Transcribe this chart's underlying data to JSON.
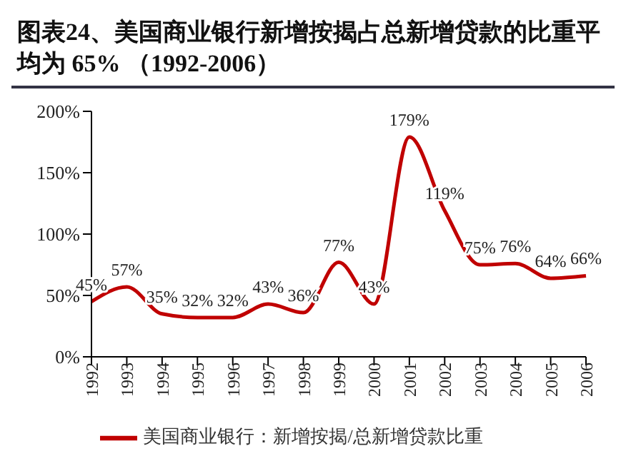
{
  "chart_data": {
    "type": "line",
    "title": "图表24、美国商业银行新增按揭占总新增贷款的比重平均为 65% （1992-2006）",
    "categories": [
      "1992",
      "1993",
      "1994",
      "1995",
      "1996",
      "1997",
      "1998",
      "1999",
      "2000",
      "2001",
      "2002",
      "2003",
      "2004",
      "2005",
      "2006"
    ],
    "series": [
      {
        "name": "美国商业银行：新增按揭/总新增贷款比重",
        "color": "#c00000",
        "values": [
          45,
          57,
          35,
          32,
          32,
          43,
          36,
          77,
          43,
          179,
          119,
          75,
          76,
          64,
          66
        ],
        "value_labels": [
          "45%",
          "57%",
          "35%",
          "32%",
          "32%",
          "43%",
          "36%",
          "77%",
          "43%",
          "179%",
          "119%",
          "75%",
          "76%",
          "64%",
          "66%"
        ]
      }
    ],
    "ylim": [
      0,
      200
    ],
    "yticks": [
      {
        "value": 0,
        "label": "0%"
      },
      {
        "value": 50,
        "label": "50%"
      },
      {
        "value": 100,
        "label": "100%"
      },
      {
        "value": 150,
        "label": "150%"
      },
      {
        "value": 200,
        "label": "200%"
      }
    ],
    "grid": false,
    "legend": "bottom",
    "marker": "none",
    "line_style": "solid"
  }
}
